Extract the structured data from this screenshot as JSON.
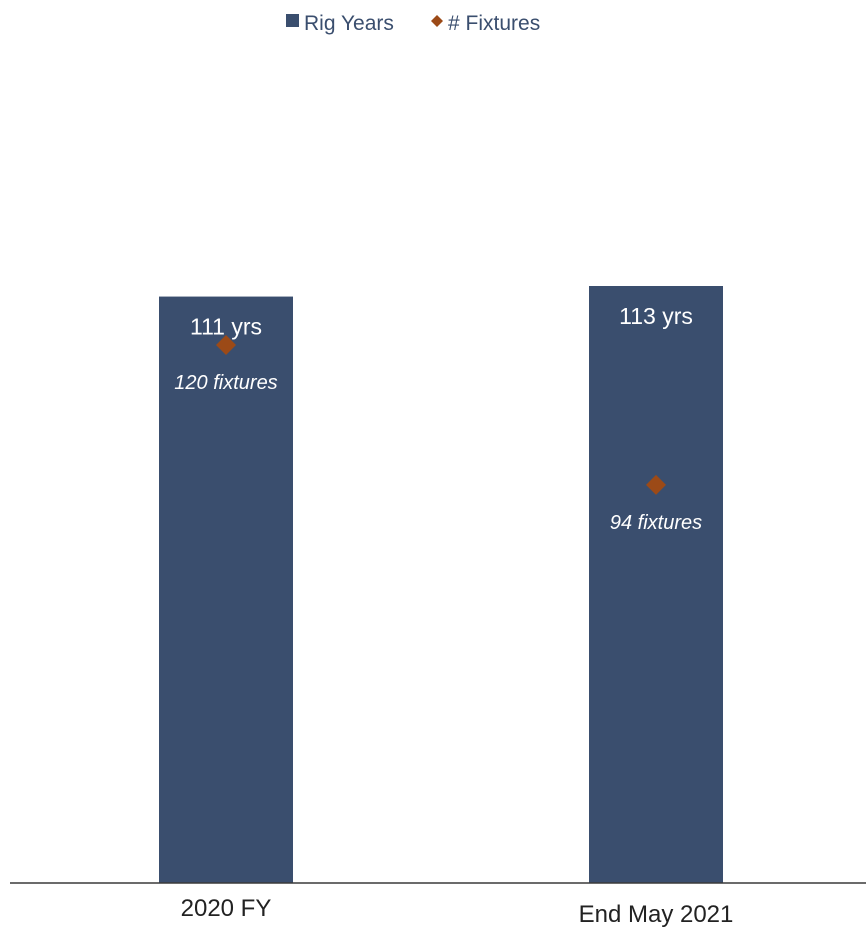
{
  "chart_data": {
    "type": "bar",
    "categories": [
      "2020 FY",
      "End May 2021"
    ],
    "series": [
      {
        "name": "Rig Years",
        "kind": "bar",
        "values": [
          111,
          113
        ],
        "labels": [
          "111 yrs",
          "113 yrs"
        ],
        "color": "#3a4e6e"
      },
      {
        "name": "# Fixtures",
        "kind": "marker",
        "marker": "diamond",
        "values": [
          120,
          94
        ],
        "labels": [
          "120 fixtures",
          "94 fixtures"
        ],
        "color": "#9c4a17"
      }
    ],
    "legend": "top-center",
    "grid": false,
    "ylim": [
      0,
      140
    ]
  }
}
